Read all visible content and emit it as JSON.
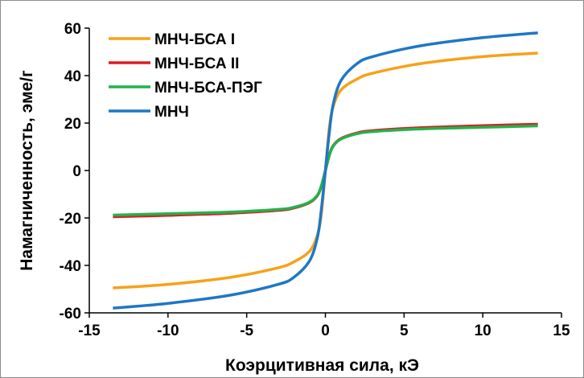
{
  "chart_data": {
    "type": "line",
    "title": "",
    "xlabel": "Коэрцитивная сила, кЭ",
    "ylabel": "Намагниченность, эме/г",
    "xlim": [
      -15,
      15
    ],
    "ylim": [
      -60,
      60
    ],
    "x_ticks": [
      "-15",
      "-10",
      "-5",
      "0",
      "5",
      "10",
      "15"
    ],
    "y_ticks": [
      "60",
      "40",
      "20",
      "0",
      "-20",
      "-40",
      "-60"
    ],
    "grid": false,
    "legend_position": "top-left",
    "series": [
      {
        "name": "МНЧ-БСА I",
        "color": "#f7a11a",
        "x": [
          -13.5,
          -10,
          -6,
          -3,
          -2,
          -1,
          -0.5,
          -0.25,
          0,
          0.25,
          0.5,
          1,
          2,
          3,
          6,
          10,
          13.5
        ],
        "y": [
          -49.5,
          -48,
          -45,
          -41,
          -38.5,
          -34,
          -27,
          -18,
          0,
          18,
          27,
          34,
          38.5,
          41,
          45,
          48,
          49.5
        ]
      },
      {
        "name": "МНЧ-БСА II",
        "color": "#e01b22",
        "x": [
          -13.5,
          -10,
          -6,
          -3,
          -2,
          -1,
          -0.5,
          -0.25,
          0,
          0.25,
          0.5,
          1,
          2,
          3,
          6,
          10,
          13.5
        ],
        "y": [
          -19.5,
          -18.9,
          -18,
          -16.8,
          -15.8,
          -13.5,
          -10.5,
          -6.5,
          0,
          6.5,
          10.5,
          13.5,
          15.8,
          16.8,
          18,
          18.9,
          19.5
        ]
      },
      {
        "name": "МНЧ-БСА-ПЭГ",
        "color": "#22b24c",
        "x": [
          -13.5,
          -10,
          -6,
          -3,
          -2,
          -1,
          -0.5,
          -0.25,
          0,
          0.25,
          0.5,
          1,
          2,
          3,
          6,
          10,
          13.5
        ],
        "y": [
          -18.8,
          -18.2,
          -17.5,
          -16.4,
          -15.5,
          -13.3,
          -10.3,
          -6.3,
          0,
          6.3,
          10.3,
          13.3,
          15.5,
          16.4,
          17.5,
          18.2,
          18.8
        ]
      },
      {
        "name": "МНЧ",
        "color": "#1f77c4",
        "x": [
          -13.5,
          -10,
          -6,
          -3,
          -2,
          -1,
          -0.5,
          -0.25,
          0,
          0.25,
          0.5,
          1,
          2,
          3,
          6,
          10,
          13.5
        ],
        "y": [
          -58,
          -56,
          -52.5,
          -48,
          -45,
          -38,
          -28,
          -16,
          0,
          16,
          28,
          38,
          45,
          48,
          52.5,
          56,
          58
        ]
      }
    ]
  }
}
